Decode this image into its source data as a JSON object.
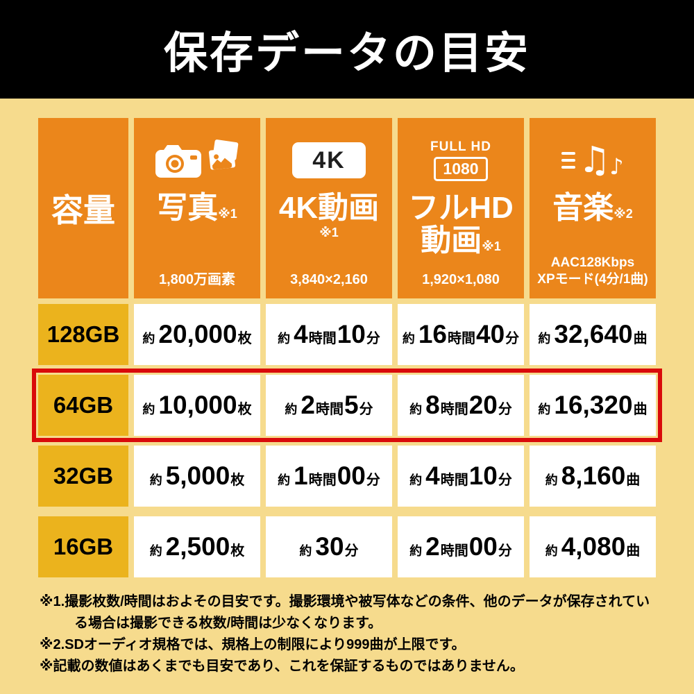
{
  "title": "保存データの目安",
  "colors": {
    "title_bar_black": "#000000",
    "header_orange": "#EB861B",
    "capacity_gold": "#EBB31D",
    "background_yellow": "#F6DB8D",
    "highlight_red": "#D90A0A",
    "cell_white": "#FFFFFF"
  },
  "icons": {
    "music_note_big": "♫",
    "music_note_small": "♪"
  },
  "table": {
    "capacity_header": "容量",
    "columns": [
      {
        "title": "写真",
        "note": "※1",
        "subtitle": "1,800万画素"
      },
      {
        "title": "4K動画",
        "note": "※1",
        "subtitle": "3,840×2,160",
        "badge": "4K"
      },
      {
        "title_line1": "フルHD",
        "title_line2": "動画",
        "note": "※1",
        "subtitle": "1,920×1,080",
        "badge_top": "FULL HD",
        "badge_box": "1080"
      },
      {
        "title": "音楽",
        "note": "※2",
        "subtitle_line1": "AAC128Kbps",
        "subtitle_line2": "XPモード(4分/1曲)"
      }
    ],
    "rows": [
      {
        "capacity": "128GB",
        "highlight": false,
        "cells": [
          [
            [
              "約",
              0
            ],
            [
              "20,000",
              1
            ],
            [
              "枚",
              0
            ]
          ],
          [
            [
              "約",
              0
            ],
            [
              "4",
              1
            ],
            [
              "時間",
              0
            ],
            [
              "10",
              1
            ],
            [
              "分",
              0
            ]
          ],
          [
            [
              "約",
              0
            ],
            [
              "16",
              1
            ],
            [
              "時間",
              0
            ],
            [
              "40",
              1
            ],
            [
              "分",
              0
            ]
          ],
          [
            [
              "約",
              0
            ],
            [
              "32,640",
              1
            ],
            [
              "曲",
              0
            ]
          ]
        ]
      },
      {
        "capacity": "64GB",
        "highlight": true,
        "cells": [
          [
            [
              "約",
              0
            ],
            [
              "10,000",
              1
            ],
            [
              "枚",
              0
            ]
          ],
          [
            [
              "約",
              0
            ],
            [
              "2",
              1
            ],
            [
              "時間",
              0
            ],
            [
              "5",
              1
            ],
            [
              "分",
              0
            ]
          ],
          [
            [
              "約",
              0
            ],
            [
              "8",
              1
            ],
            [
              "時間",
              0
            ],
            [
              "20",
              1
            ],
            [
              "分",
              0
            ]
          ],
          [
            [
              "約",
              0
            ],
            [
              "16,320",
              1
            ],
            [
              "曲",
              0
            ]
          ]
        ]
      },
      {
        "capacity": "32GB",
        "highlight": false,
        "cells": [
          [
            [
              "約",
              0
            ],
            [
              "5,000",
              1
            ],
            [
              "枚",
              0
            ]
          ],
          [
            [
              "約",
              0
            ],
            [
              "1",
              1
            ],
            [
              "時間",
              0
            ],
            [
              "00",
              1
            ],
            [
              "分",
              0
            ]
          ],
          [
            [
              "約",
              0
            ],
            [
              "4",
              1
            ],
            [
              "時間",
              0
            ],
            [
              "10",
              1
            ],
            [
              "分",
              0
            ]
          ],
          [
            [
              "約",
              0
            ],
            [
              "8,160",
              1
            ],
            [
              "曲",
              0
            ]
          ]
        ]
      },
      {
        "capacity": "16GB",
        "highlight": false,
        "cells": [
          [
            [
              "約",
              0
            ],
            [
              "2,500",
              1
            ],
            [
              "枚",
              0
            ]
          ],
          [
            [
              "約",
              0
            ],
            [
              "30",
              1
            ],
            [
              "分",
              0
            ]
          ],
          [
            [
              "約",
              0
            ],
            [
              "2",
              1
            ],
            [
              "時間",
              0
            ],
            [
              "00",
              1
            ],
            [
              "分",
              0
            ]
          ],
          [
            [
              "約",
              0
            ],
            [
              "4,080",
              1
            ],
            [
              "曲",
              0
            ]
          ]
        ]
      }
    ]
  },
  "notes": [
    "※1.撮影枚数/時間はおよその目安です。撮影環境や被写体などの条件、他のデータが保存されている場合は撮影できる枚数/時間は少なくなります。",
    "※2.SDオーディオ規格では、規格上の制限により999曲が上限です。",
    "※記載の数値はあくまでも目安であり、これを保証するものではありません。"
  ],
  "chart_data": {
    "type": "table",
    "title": "保存データの目安",
    "columns": [
      "容量",
      "写真 ※1 (1,800万画素)",
      "4K動画 ※1 (3,840×2,160)",
      "フルHD動画 ※1 (1,920×1,080)",
      "音楽 ※2 (AAC128Kbps XPモード(4分/1曲))"
    ],
    "rows": [
      [
        "128GB",
        "約20,000枚",
        "約4時間10分",
        "約16時間40分",
        "約32,640曲"
      ],
      [
        "64GB",
        "約10,000枚",
        "約2時間5分",
        "約8時間20分",
        "約16,320曲"
      ],
      [
        "32GB",
        "約5,000枚",
        "約1時間00分",
        "約4時間10分",
        "約8,160曲"
      ],
      [
        "16GB",
        "約2,500枚",
        "約30分",
        "約2時間00分",
        "約4,080曲"
      ]
    ],
    "highlighted_row": "64GB"
  }
}
